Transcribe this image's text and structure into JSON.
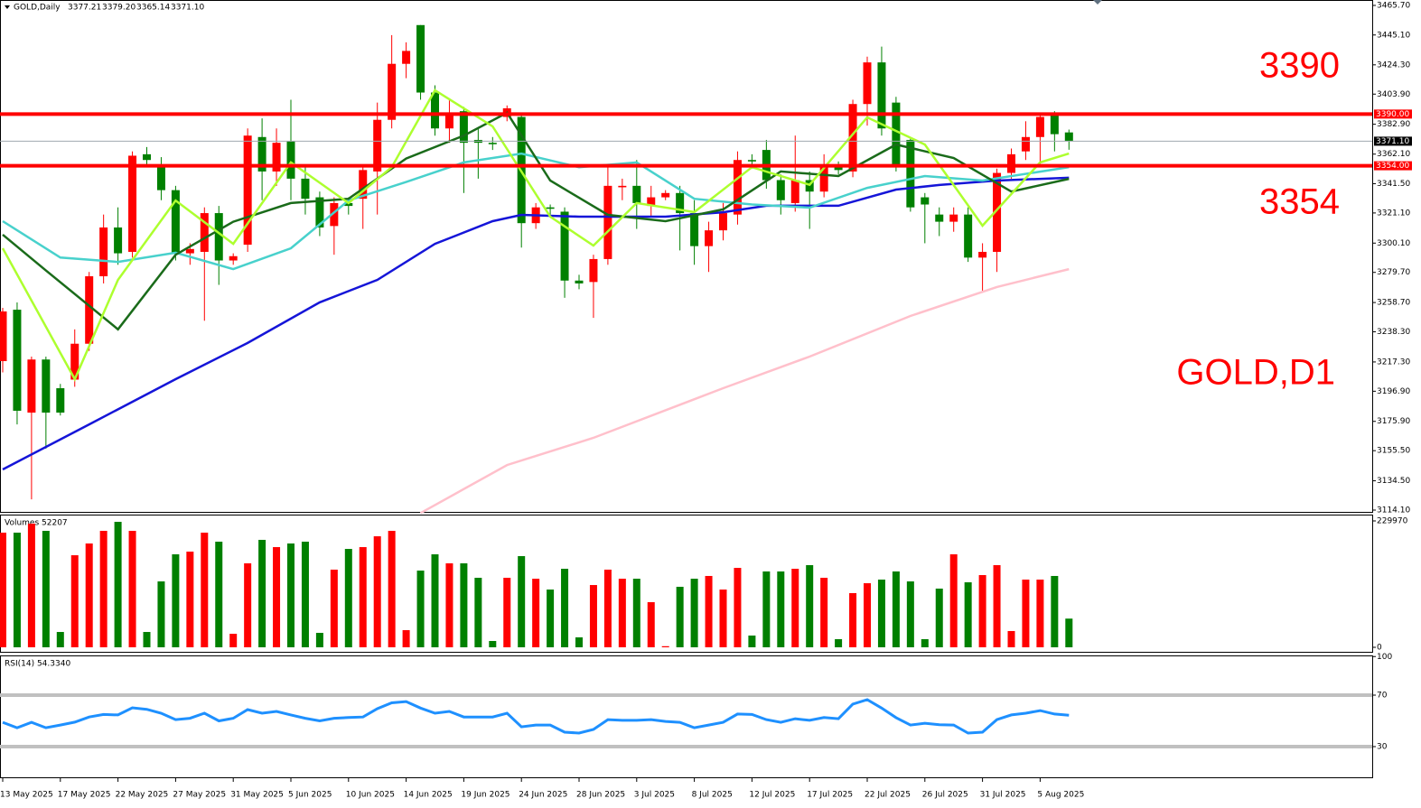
{
  "chart_data": [
    {
      "type": "candlestick",
      "title": "GOLD,Daily",
      "header_values": [
        "3377.21",
        "3379.20",
        "3365.14",
        "3371.10"
      ],
      "categories": [
        "13 May 2025",
        null,
        null,
        null,
        "17 May 2025",
        null,
        null,
        null,
        "22 May 2025",
        null,
        null,
        null,
        "27 May 2025",
        null,
        null,
        null,
        "31 May 2025",
        null,
        null,
        null,
        "5 Jun 2025",
        null,
        null,
        null,
        "10 Jun 2025",
        null,
        null,
        null,
        "14 Jun 2025",
        null,
        null,
        null,
        "19 Jun 2025",
        null,
        null,
        null,
        "24 Jun 2025",
        null,
        null,
        null,
        "28 Jun 2025",
        null,
        null,
        null,
        "3 Jul 2025",
        null,
        null,
        null,
        "8 Jul 2025",
        null,
        null,
        null,
        "12 Jul 2025",
        null,
        null,
        null,
        "17 Jul 2025",
        null,
        null,
        null,
        "22 Jul 2025",
        null,
        null,
        null,
        "26 Jul 2025",
        null,
        null,
        null,
        "31 Jul 2025",
        null,
        null,
        null,
        "5 Aug 2025",
        null,
        null
      ],
      "open": [
        3217.9,
        3253.7,
        3182,
        3219,
        3199,
        3205,
        3230,
        3277,
        3311,
        3294,
        3362,
        3355,
        3337,
        3293,
        3294,
        3321,
        3288,
        3299,
        3374,
        3350,
        3371,
        3345,
        3332,
        3312,
        3328,
        3331,
        3350,
        3386,
        3425,
        3452,
        3405,
        3380,
        3392,
        3372,
        3370,
        3388,
        3388,
        3314,
        3325,
        3322,
        3274,
        3273,
        3289,
        3339,
        3340,
        3326,
        3332,
        3335,
        3321,
        3298,
        3309,
        3320,
        3358,
        3365,
        3344,
        3328,
        3344,
        3336,
        3355,
        3350,
        3397,
        3426,
        3398,
        3372,
        3332,
        3320,
        3315,
        3320,
        3290,
        3294,
        3349,
        3364,
        3374,
        3389,
        3377.21
      ],
      "high": [
        3255,
        3258.8,
        3221,
        3221,
        3202,
        3240,
        3280,
        3320,
        3325,
        3364,
        3367,
        3360,
        3340,
        3300,
        3325,
        3326,
        3293,
        3380,
        3387,
        3380,
        3400,
        3354,
        3336,
        3332,
        3332,
        3355,
        3398,
        3445,
        3440,
        3452,
        3410,
        3400,
        3395,
        3380,
        3374,
        3396,
        3391,
        3328,
        3327,
        3325,
        3278,
        3292,
        3355,
        3345,
        3358,
        3340,
        3337,
        3340,
        3330,
        3315,
        3328,
        3364,
        3362,
        3372,
        3348,
        3375,
        3350,
        3362,
        3357,
        3400,
        3430,
        3437,
        3402,
        3374,
        3335,
        3325,
        3325,
        3325,
        3300,
        3352,
        3366,
        3385,
        3390,
        3392,
        3379.2
      ],
      "low": [
        3210,
        3173.8,
        3121.6,
        3156.9,
        3180,
        3200,
        3225,
        3272,
        3285,
        3290,
        3355,
        3330,
        3288,
        3285,
        3246,
        3271,
        3285,
        3294,
        3330,
        3340,
        3330,
        3320,
        3305,
        3292,
        3320,
        3310,
        3320,
        3380,
        3415,
        3400,
        3375,
        3370,
        3335,
        3345,
        3365,
        3385,
        3297,
        3310,
        3320,
        3262,
        3268,
        3248,
        3285,
        3330,
        3310,
        3318,
        3330,
        3295,
        3285,
        3280,
        3302,
        3313,
        3352,
        3338,
        3320,
        3322,
        3310,
        3332,
        3348,
        3346,
        3382,
        3375,
        3350,
        3322,
        3300,
        3305,
        3308,
        3287,
        3267,
        3280,
        3345,
        3358,
        3355,
        3364,
        3365.14
      ],
      "close": [
        3252.5,
        3183.3,
        3219,
        3182,
        3182,
        3230,
        3277,
        3311,
        3293,
        3361,
        3358,
        3337,
        3293,
        3296,
        3321,
        3288,
        3291,
        3375,
        3350,
        3370,
        3345,
        3331,
        3311,
        3328,
        3326,
        3351,
        3386,
        3425,
        3434,
        3405,
        3380,
        3391,
        3370,
        3370,
        3369,
        3394,
        3314,
        3325,
        3324,
        3274,
        3272,
        3289,
        3340,
        3340,
        3328,
        3332,
        3335,
        3321,
        3298,
        3309,
        3321,
        3358,
        3357,
        3344,
        3330,
        3344,
        3336,
        3355,
        3351,
        3397,
        3426,
        3380,
        3354,
        3325,
        3327,
        3315,
        3320,
        3290,
        3294,
        3349,
        3362,
        3374,
        3388,
        3376,
        3371.1
      ],
      "up_color": "#ff0000",
      "down_color": "#008000",
      "ylim": [
        3114.1,
        3465.7
      ],
      "yticks": [
        {
          "value": 3465.7,
          "label": "3465.70"
        },
        {
          "value": 3445.1,
          "label": "3445.10"
        },
        {
          "value": 3424.3,
          "label": "3424.30"
        },
        {
          "value": 3403.9,
          "label": "3403.90"
        },
        {
          "value": 3382.9,
          "label": "3382.90"
        },
        {
          "value": 3362.1,
          "label": "3362.10"
        },
        {
          "value": 3341.5,
          "label": "3341.50"
        },
        {
          "value": 3321.1,
          "label": "3321.10"
        },
        {
          "value": 3300.1,
          "label": "3300.10"
        },
        {
          "value": 3279.7,
          "label": "3279.70"
        },
        {
          "value": 3258.7,
          "label": "3258.70"
        },
        {
          "value": 3238.3,
          "label": "3238.30"
        },
        {
          "value": 3217.3,
          "label": "3217.30"
        },
        {
          "value": 3196.9,
          "label": "3196.90"
        },
        {
          "value": 3175.9,
          "label": "3175.90"
        },
        {
          "value": 3155.5,
          "label": "3155.50"
        },
        {
          "value": 3134.5,
          "label": "3134.50"
        },
        {
          "value": 3114.1,
          "label": "3114.10"
        }
      ],
      "levels": [
        {
          "value": 3390,
          "label": "3390.00",
          "color": "#ff0000"
        },
        {
          "value": 3354,
          "label": "3354.00",
          "color": "#ff0000"
        },
        {
          "value": 3371.1,
          "label": "3371.10",
          "color": "#000000"
        }
      ],
      "annotations": [
        "3390",
        "3354",
        "GOLD,D1"
      ],
      "moving_averages": [
        {
          "color": "#ffc0cb",
          "x": [
            29,
            35,
            41,
            50,
            56,
            63,
            69,
            74
          ],
          "values": [
            3112,
            3145.5,
            3164.4,
            3199,
            3221,
            3249.3,
            3269.5,
            3282
          ]
        },
        {
          "color": "#1515d8",
          "x": [
            0,
            6,
            12,
            17,
            22,
            26,
            30,
            34,
            36,
            40,
            46,
            50,
            53,
            58,
            62,
            65,
            69,
            74
          ],
          "values": [
            3142.4,
            3173.8,
            3205.3,
            3230.5,
            3258.8,
            3274.5,
            3299.6,
            3315.4,
            3319.8,
            3318.5,
            3318.5,
            3321.6,
            3326.1,
            3326.1,
            3337.4,
            3340.6,
            3343.7,
            3345.6
          ]
        },
        {
          "color": "#48d1cc",
          "x": [
            0,
            4,
            8,
            12,
            16,
            20,
            24,
            28,
            32,
            36,
            40,
            44,
            48,
            52,
            56,
            60,
            64,
            68,
            74
          ],
          "values": [
            3315.4,
            3290,
            3287,
            3293.4,
            3282,
            3296.5,
            3329.8,
            3342.7,
            3356.3,
            3362.5,
            3353,
            3356.3,
            3331,
            3327,
            3324.8,
            3338.6,
            3346.8,
            3343.7,
            3353
          ]
        },
        {
          "color": "#1a6b1a",
          "x": [
            0,
            3,
            8,
            12,
            16,
            20,
            24,
            28,
            32,
            35,
            38,
            42,
            46,
            50,
            54,
            58,
            62,
            66,
            70,
            74
          ],
          "values": [
            3306,
            3281,
            3240,
            3292,
            3315,
            3328,
            3331,
            3359,
            3375,
            3390.9,
            3343.7,
            3319.8,
            3315.4,
            3323.6,
            3350,
            3346.8,
            3368.8,
            3359.4,
            3336,
            3344.9
          ]
        },
        {
          "color": "#adff2f",
          "x": [
            0,
            5,
            8,
            12,
            16,
            20,
            24,
            27,
            30,
            34,
            38,
            41,
            44,
            48,
            52,
            56,
            60,
            64,
            68,
            72,
            74
          ],
          "values": [
            3296.5,
            3205.3,
            3274.5,
            3329.8,
            3299.6,
            3356.3,
            3328,
            3353,
            3406.6,
            3381.4,
            3318.5,
            3298.4,
            3328,
            3321.7,
            3353,
            3340.7,
            3387.7,
            3368.8,
            3312.2,
            3356.3,
            3362.5
          ]
        }
      ]
    },
    {
      "type": "bar",
      "title": "Volumes 52207",
      "values": [
        208600,
        208600,
        225000,
        211900,
        27900,
        167500,
        188900,
        211900,
        228300,
        211900,
        27900,
        119900,
        169200,
        174100,
        208600,
        192200,
        24600,
        152800,
        195500,
        182300,
        188900,
        192200,
        26300,
        141300,
        179000,
        182300,
        202000,
        211900,
        31200,
        139600,
        169200,
        152800,
        152800,
        126500,
        11500,
        126500,
        165900,
        124800,
        105100,
        142900,
        18100,
        113300,
        141300,
        124800,
        124800,
        82100,
        2000,
        110100,
        124800,
        129800,
        105100,
        144500,
        21400,
        138000,
        138000,
        142900,
        149500,
        126500,
        14800,
        98600,
        116600,
        123200,
        138000,
        119900,
        14800,
        106800,
        169200,
        118300,
        131400,
        149500,
        29600,
        123200,
        123200,
        129800,
        52207
      ],
      "ylim": [
        0,
        229970
      ],
      "yticks": [
        0,
        229970
      ]
    },
    {
      "type": "line",
      "title": "RSI(14) 54.3340",
      "color": "#1e90ff",
      "values": [
        48.9,
        44.7,
        48.9,
        44.7,
        46.8,
        49,
        53,
        55,
        54.6,
        60.2,
        59,
        56,
        51,
        52,
        56,
        50,
        52,
        58.8,
        56,
        57.4,
        54.6,
        52,
        50,
        52,
        52.6,
        53,
        59.5,
        64,
        65,
        60,
        56,
        57.4,
        53,
        53,
        53,
        56,
        45.4,
        46.8,
        46.8,
        41.2,
        40.5,
        43.3,
        51,
        50.4,
        50.4,
        51,
        49.6,
        48.9,
        44.7,
        46.8,
        48.9,
        55.3,
        55,
        51,
        48.9,
        51.7,
        50.4,
        52.6,
        51.7,
        63,
        66.5,
        60,
        52.5,
        46.8,
        48.2,
        47,
        46.8,
        40.5,
        41.2,
        51,
        54.6,
        56,
        58,
        55.3,
        54.334
      ],
      "ylim": [
        0,
        100
      ],
      "yticks": [
        100,
        70,
        30
      ],
      "levels": [
        70,
        30
      ]
    }
  ]
}
